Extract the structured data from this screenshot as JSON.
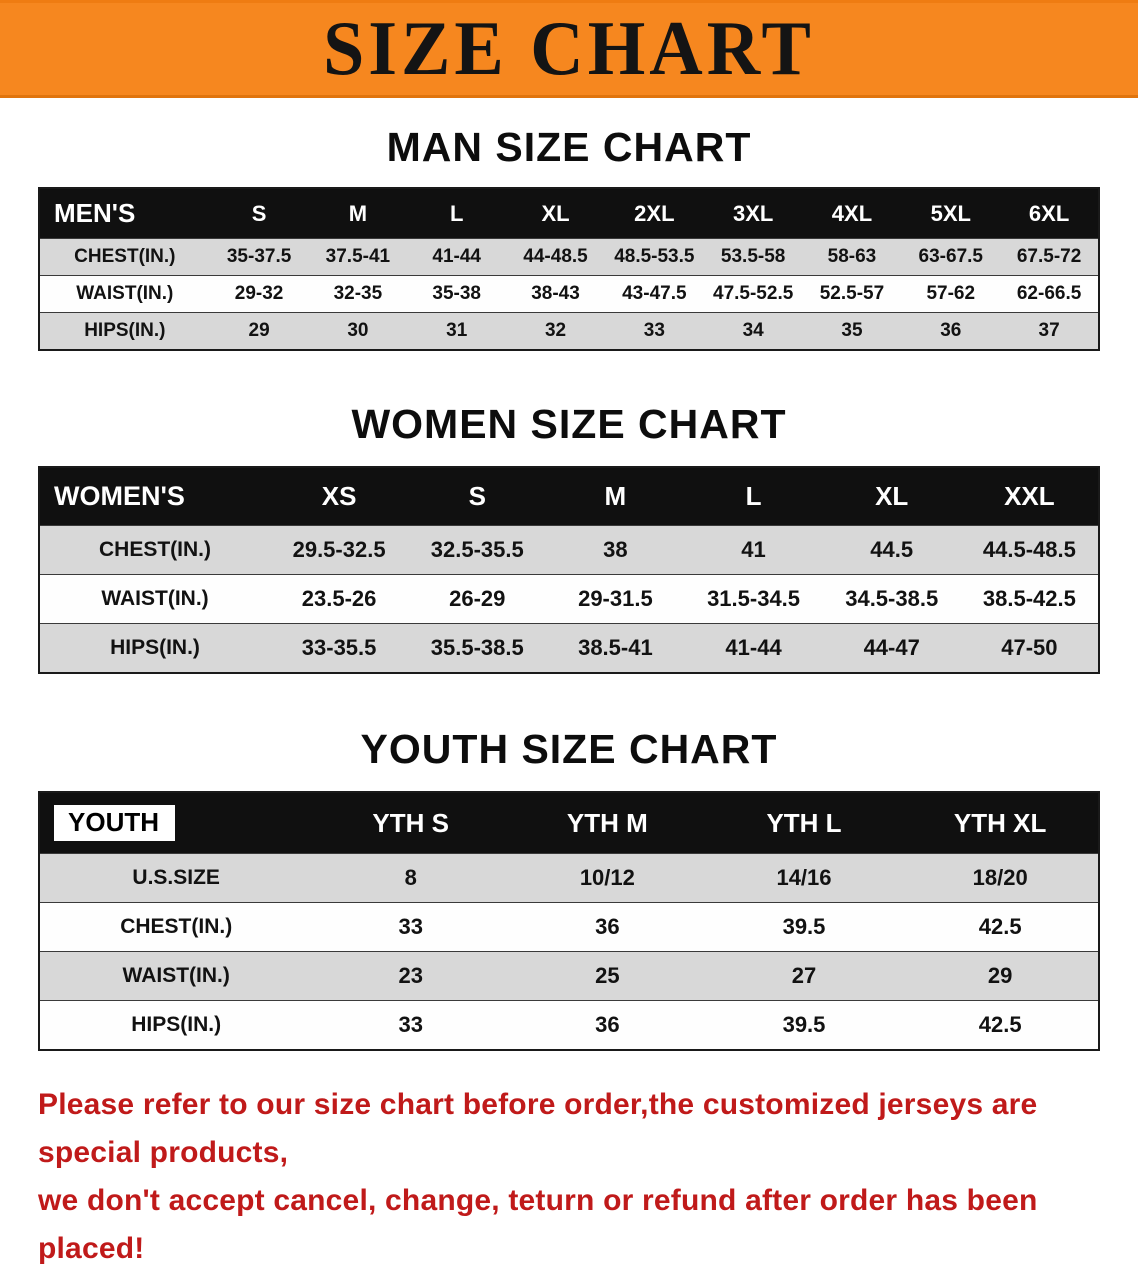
{
  "banner": {
    "title": "SIZE CHART"
  },
  "colors": {
    "banner_bg": "#F6871F",
    "table_header_bg": "#101010",
    "row_alt_gray": "#D8D8D8",
    "disclaimer_red": "#C01A1A"
  },
  "chart_data": [
    {
      "type": "table",
      "title": "MAN SIZE CHART",
      "columns": [
        "MEN'S",
        "S",
        "M",
        "L",
        "XL",
        "2XL",
        "3XL",
        "4XL",
        "5XL",
        "6XL"
      ],
      "rows": [
        [
          "CHEST(IN.)",
          "35-37.5",
          "37.5-41",
          "41-44",
          "44-48.5",
          "48.5-53.5",
          "53.5-58",
          "58-63",
          "63-67.5",
          "67.5-72"
        ],
        [
          "WAIST(IN.)",
          "29-32",
          "32-35",
          "35-38",
          "38-43",
          "43-47.5",
          "47.5-52.5",
          "52.5-57",
          "57-62",
          "62-66.5"
        ],
        [
          "HIPS(IN.)",
          "29",
          "30",
          "31",
          "32",
          "33",
          "34",
          "35",
          "36",
          "37"
        ]
      ]
    },
    {
      "type": "table",
      "title": "WOMEN SIZE CHART",
      "columns": [
        "WOMEN'S",
        "XS",
        "S",
        "M",
        "L",
        "XL",
        "XXL"
      ],
      "rows": [
        [
          "CHEST(IN.)",
          "29.5-32.5",
          "32.5-35.5",
          "38",
          "41",
          "44.5",
          "44.5-48.5"
        ],
        [
          "WAIST(IN.)",
          "23.5-26",
          "26-29",
          "29-31.5",
          "31.5-34.5",
          "34.5-38.5",
          "38.5-42.5"
        ],
        [
          "HIPS(IN.)",
          "33-35.5",
          "35.5-38.5",
          "38.5-41",
          "41-44",
          "44-47",
          "47-50"
        ]
      ]
    },
    {
      "type": "table",
      "title": "YOUTH SIZE CHART",
      "columns": [
        "YOUTH",
        "YTH S",
        "YTH M",
        "YTH L",
        "YTH XL"
      ],
      "rows": [
        [
          "U.S.SIZE",
          "8",
          "10/12",
          "14/16",
          "18/20"
        ],
        [
          "CHEST(IN.)",
          "33",
          "36",
          "39.5",
          "42.5"
        ],
        [
          "WAIST(IN.)",
          "23",
          "25",
          "27",
          "29"
        ],
        [
          "HIPS(IN.)",
          "33",
          "36",
          "39.5",
          "42.5"
        ]
      ]
    }
  ],
  "disclaimer": {
    "line1": "Please refer to our size chart before order,the customized jerseys are special products,",
    "line2": "we don't accept cancel, change, teturn or refund after order has been placed!"
  }
}
